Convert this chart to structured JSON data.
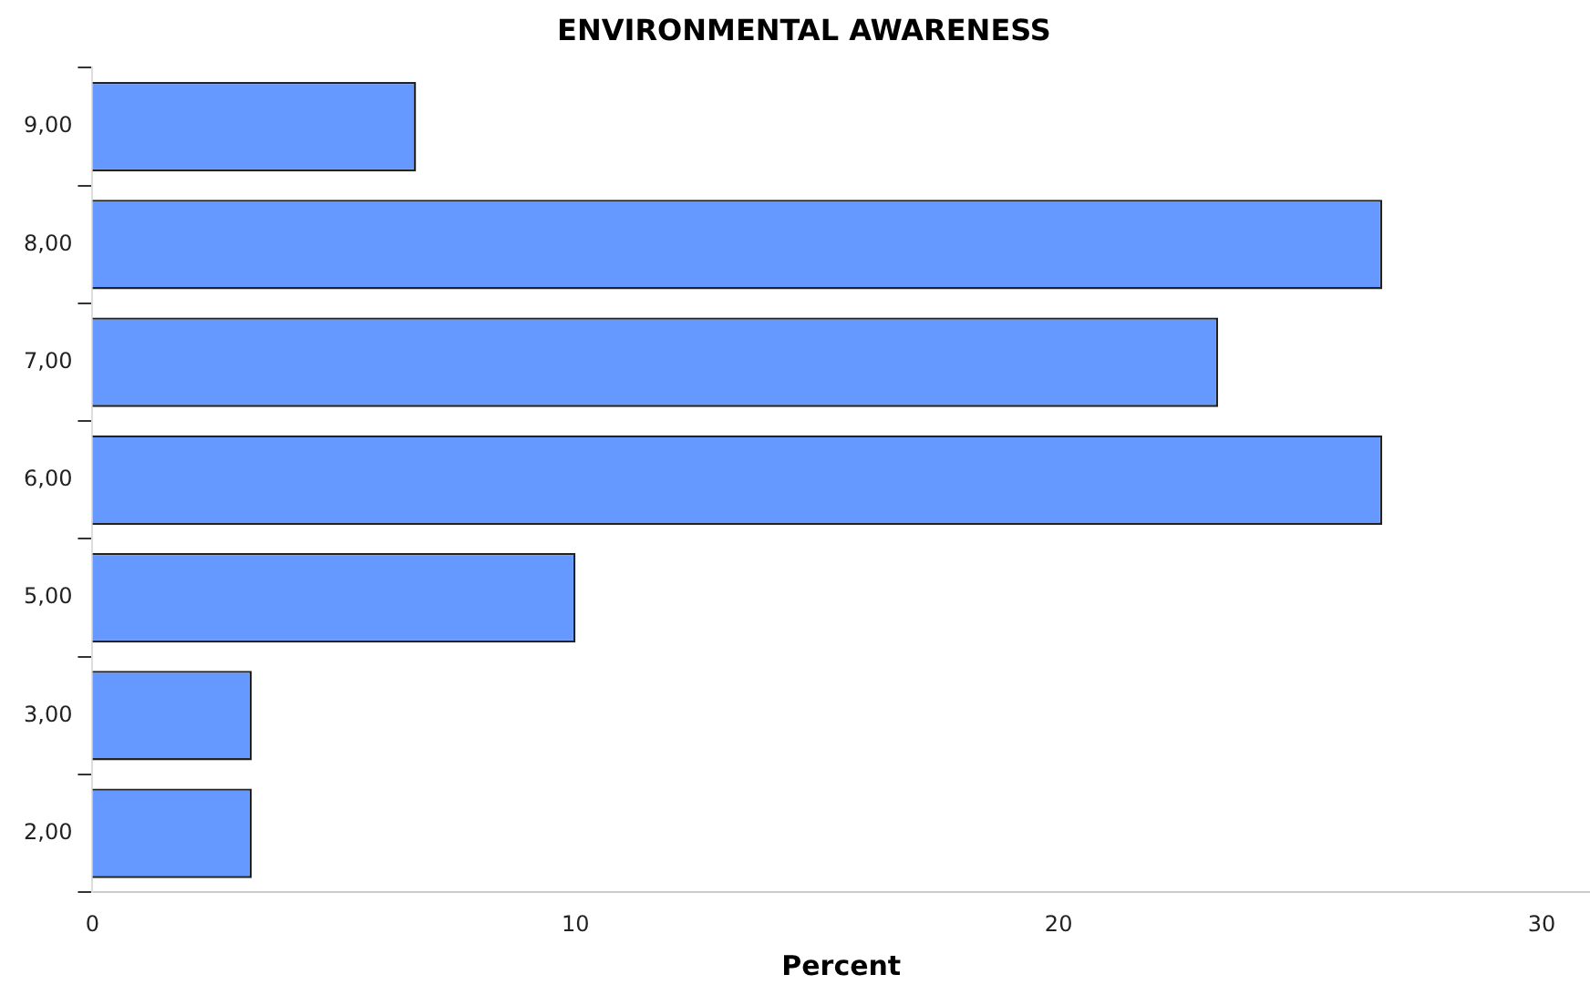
{
  "chart_data": {
    "type": "bar",
    "orientation": "horizontal",
    "title": "ENVIRONMENTAL AWARENESS",
    "xlabel": "Percent",
    "categories": [
      "9,00",
      "8,00",
      "7,00",
      "6,00",
      "5,00",
      "3,00",
      "2,00"
    ],
    "values": [
      6.7,
      26.7,
      23.3,
      26.7,
      10.0,
      3.3,
      3.3
    ],
    "color": "#6699ff",
    "xlim": [
      0,
      31
    ],
    "xticks": [
      0,
      10,
      20,
      30
    ],
    "grid": false,
    "legend": false
  }
}
